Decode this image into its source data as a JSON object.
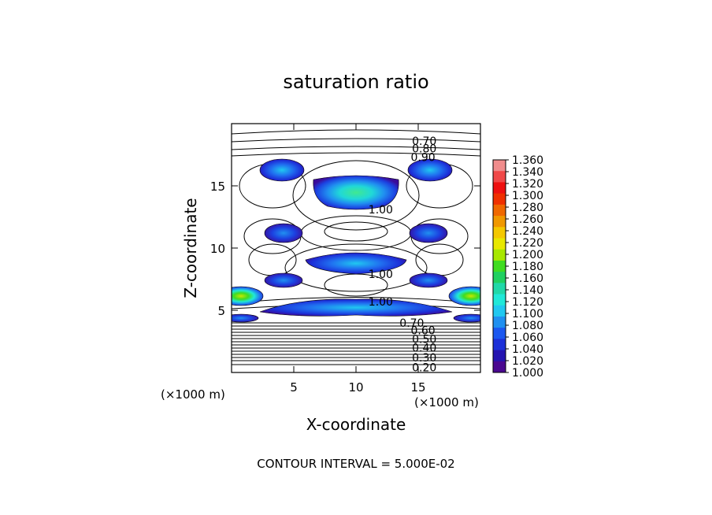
{
  "chart_data": {
    "type": "contour",
    "title": "saturation ratio",
    "xlabel": "X-coordinate",
    "ylabel": "Z-coordinate",
    "x_unit": "(×1000 m)",
    "z_unit": "(×1000 m)",
    "xlim": [
      0,
      20
    ],
    "ylim": [
      0,
      20
    ],
    "xticks": [
      5,
      10,
      15
    ],
    "yticks": [
      5,
      10,
      15
    ],
    "footer": "CONTOUR INTERVAL = 5.000E-02",
    "contour_labels": [
      {
        "text": "0.70",
        "x": 14.5,
        "z": 18.6
      },
      {
        "text": "0.80",
        "x": 14.5,
        "z": 18.0
      },
      {
        "text": "0.90",
        "x": 14.4,
        "z": 17.3
      },
      {
        "text": "1.00",
        "x": 11.0,
        "z": 13.1
      },
      {
        "text": "1.00",
        "x": 11.0,
        "z": 7.9
      },
      {
        "text": "1.00",
        "x": 11.0,
        "z": 5.7
      },
      {
        "text": "0.20",
        "x": 14.5,
        "z": 0.4
      },
      {
        "text": "0.30",
        "x": 14.5,
        "z": 1.2
      },
      {
        "text": "0.40",
        "x": 14.5,
        "z": 2.0
      },
      {
        "text": "0.50",
        "x": 14.5,
        "z": 2.7
      },
      {
        "text": "0.60",
        "x": 14.4,
        "z": 3.4
      },
      {
        "text": "0.70",
        "x": 13.5,
        "z": 4.0
      }
    ],
    "colorbar": {
      "labels": [
        "1.360",
        "1.340",
        "1.320",
        "1.300",
        "1.280",
        "1.260",
        "1.240",
        "1.220",
        "1.200",
        "1.180",
        "1.160",
        "1.140",
        "1.120",
        "1.100",
        "1.080",
        "1.060",
        "1.040",
        "1.020",
        "1.000"
      ],
      "colors": [
        "#f08c8c",
        "#f04848",
        "#ee1010",
        "#f03000",
        "#f06800",
        "#f09800",
        "#f4c800",
        "#e8e800",
        "#a8e800",
        "#40dc20",
        "#20d060",
        "#20d8a8",
        "#20e8d8",
        "#20c8f0",
        "#2090f0",
        "#1c58f0",
        "#1c30d8",
        "#2414b0",
        "#4a0890"
      ]
    }
  }
}
